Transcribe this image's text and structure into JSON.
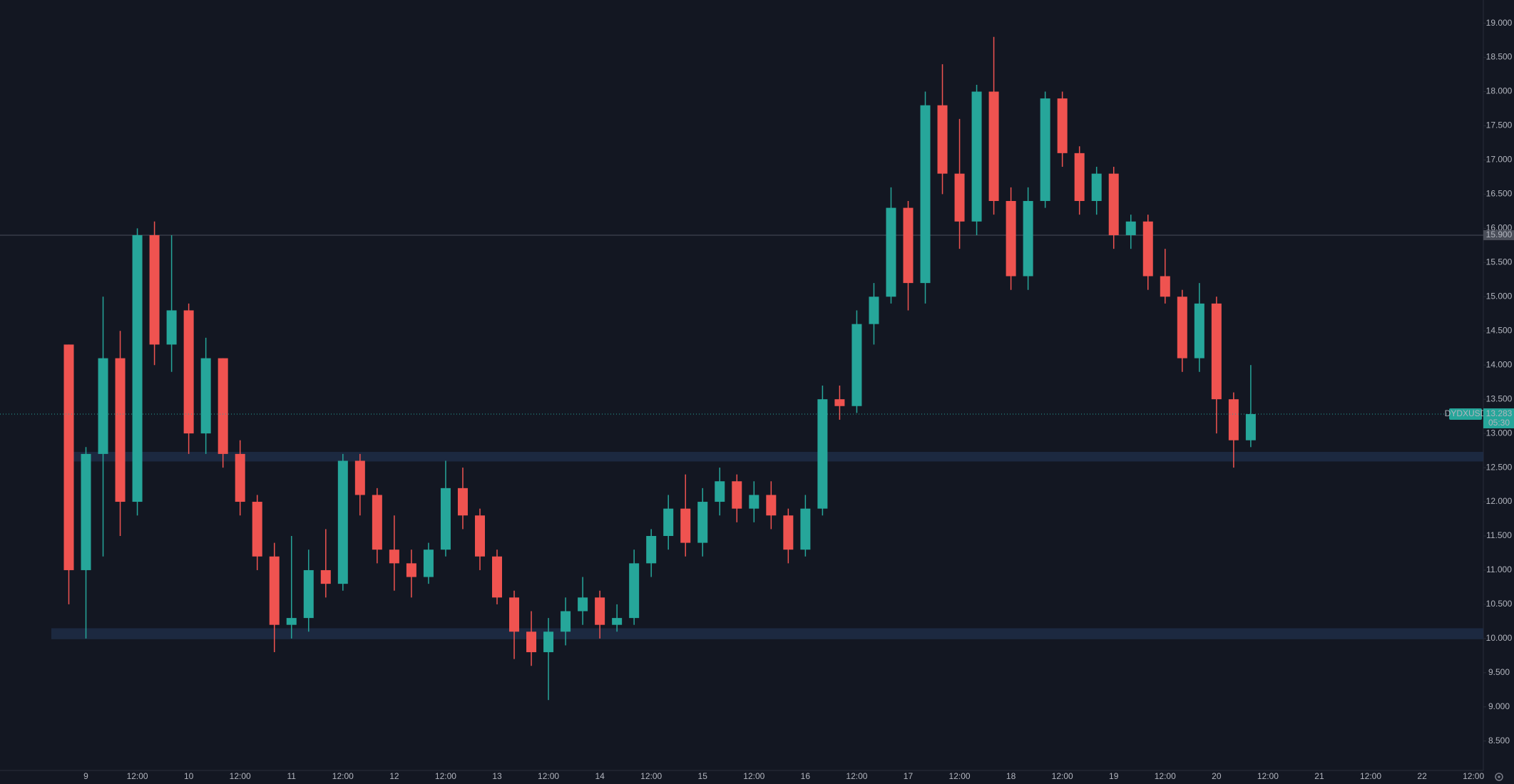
{
  "chart_data": {
    "type": "candlestick",
    "symbol": "DYDXUSD",
    "categories": [
      null,
      "9",
      null,
      null,
      "12:00",
      null,
      null,
      "10",
      null,
      null,
      "12:00",
      null,
      null,
      "11",
      null,
      null,
      "12:00",
      null,
      null,
      "12",
      null,
      null,
      "12:00",
      null,
      null,
      "13",
      null,
      null,
      "12:00",
      null,
      null,
      "14",
      null,
      null,
      "12:00",
      null,
      null,
      "15",
      null,
      null,
      "12:00",
      null,
      null,
      "16",
      null,
      null,
      "12:00",
      null,
      null,
      "17",
      null,
      null,
      "12:00",
      null,
      null,
      "18",
      null,
      null,
      "12:00",
      null,
      null,
      "19",
      null,
      null,
      "12:00",
      null,
      null,
      "20",
      null,
      null,
      "12:00",
      null,
      null,
      "21",
      null,
      null,
      "12:00",
      null,
      null,
      "22",
      null,
      null,
      "12:00"
    ],
    "open": [
      14.3,
      11.0,
      12.7,
      14.1,
      12.0,
      15.9,
      14.3,
      14.8,
      13.0,
      14.1,
      12.7,
      12.0,
      11.2,
      10.2,
      10.3,
      11.0,
      10.8,
      12.6,
      12.1,
      11.3,
      11.1,
      10.9,
      11.3,
      12.2,
      11.8,
      11.2,
      10.6,
      10.1,
      9.8,
      10.1,
      10.4,
      10.6,
      10.2,
      10.3,
      11.1,
      11.5,
      11.9,
      11.4,
      12.0,
      12.3,
      11.9,
      12.1,
      11.8,
      11.3,
      11.9,
      13.5,
      13.4,
      14.6,
      15.0,
      16.3,
      15.2,
      17.8,
      16.8,
      16.1,
      18.0,
      16.4,
      15.3,
      16.4,
      17.9,
      17.1,
      16.4,
      16.8,
      15.9,
      16.1,
      15.3,
      15.0,
      14.1,
      14.9,
      13.5,
      12.9,
      null,
      null,
      null,
      null,
      null,
      null,
      null,
      null,
      null,
      null,
      null,
      null,
      null
    ],
    "high": [
      14.3,
      12.8,
      15.0,
      14.5,
      16.0,
      16.1,
      15.9,
      14.9,
      14.4,
      14.1,
      12.9,
      12.1,
      11.4,
      11.5,
      11.3,
      11.6,
      12.7,
      12.7,
      12.2,
      11.8,
      11.3,
      11.4,
      12.6,
      12.5,
      11.9,
      11.3,
      10.7,
      10.4,
      10.3,
      10.6,
      10.9,
      10.7,
      10.5,
      11.3,
      11.6,
      12.1,
      12.4,
      12.2,
      12.5,
      12.4,
      12.3,
      12.3,
      11.9,
      12.1,
      13.7,
      13.7,
      14.8,
      15.2,
      16.6,
      16.4,
      18.0,
      18.4,
      17.6,
      18.1,
      18.8,
      16.6,
      16.6,
      18.0,
      18.0,
      17.2,
      16.9,
      16.9,
      16.2,
      16.2,
      15.7,
      15.1,
      15.2,
      15.0,
      13.6,
      14.0,
      null,
      null,
      null,
      null,
      null,
      null,
      null,
      null,
      null,
      null,
      null,
      null,
      null
    ],
    "low": [
      10.5,
      10.0,
      11.2,
      11.5,
      11.8,
      14.0,
      13.9,
      12.7,
      12.7,
      12.5,
      11.8,
      11.0,
      9.8,
      10.0,
      10.1,
      10.6,
      10.7,
      11.8,
      11.1,
      10.7,
      10.6,
      10.8,
      11.2,
      11.6,
      11.0,
      10.5,
      9.7,
      9.6,
      9.1,
      9.9,
      10.2,
      10.0,
      10.1,
      10.2,
      10.9,
      11.3,
      11.2,
      11.2,
      11.8,
      11.7,
      11.7,
      11.6,
      11.1,
      11.2,
      11.8,
      13.2,
      13.3,
      14.3,
      14.9,
      14.8,
      14.9,
      16.5,
      15.7,
      15.9,
      16.2,
      15.1,
      15.1,
      16.3,
      16.9,
      16.2,
      16.2,
      15.7,
      15.7,
      15.1,
      14.9,
      13.9,
      13.9,
      13.0,
      12.5,
      12.8,
      null,
      null,
      null,
      null,
      null,
      null,
      null,
      null,
      null,
      null,
      null,
      null,
      null
    ],
    "close": [
      11.0,
      12.7,
      14.1,
      12.0,
      15.9,
      14.3,
      14.8,
      13.0,
      14.1,
      12.7,
      12.0,
      11.2,
      10.2,
      10.3,
      11.0,
      10.8,
      12.6,
      12.1,
      11.3,
      11.1,
      10.9,
      11.3,
      12.2,
      11.8,
      11.2,
      10.6,
      10.1,
      9.8,
      10.1,
      10.4,
      10.6,
      10.2,
      10.3,
      11.1,
      11.5,
      11.9,
      11.4,
      12.0,
      12.3,
      11.9,
      12.1,
      11.8,
      11.3,
      11.9,
      13.5,
      13.4,
      14.6,
      15.0,
      16.3,
      15.2,
      17.8,
      16.8,
      16.1,
      18.0,
      16.4,
      15.3,
      16.4,
      17.9,
      17.1,
      16.4,
      16.8,
      15.9,
      16.1,
      15.3,
      15.0,
      14.1,
      14.9,
      13.5,
      12.9,
      13.283,
      null,
      null,
      null,
      null,
      null,
      null,
      null,
      null,
      null,
      null,
      null,
      null,
      null
    ],
    "up_color": "#26a69a",
    "down_color": "#ef5350",
    "ylim": [
      8.07,
      19.34
    ],
    "yticks": [
      {
        "value": 19,
        "label": "19.000"
      },
      {
        "value": 18.5,
        "label": "18.500"
      },
      {
        "value": 18,
        "label": "18.000"
      },
      {
        "value": 17.5,
        "label": "17.500"
      },
      {
        "value": 17,
        "label": "17.000"
      },
      {
        "value": 16.5,
        "label": "16.500"
      },
      {
        "value": 16,
        "label": "16.000"
      },
      {
        "value": 15.5,
        "label": "15.500"
      },
      {
        "value": 15,
        "label": "15.000"
      },
      {
        "value": 14.5,
        "label": "14.500"
      },
      {
        "value": 14,
        "label": "14.000"
      },
      {
        "value": 13.5,
        "label": "13.500"
      },
      {
        "value": 13,
        "label": "13.000"
      },
      {
        "value": 12.5,
        "label": "12.500"
      },
      {
        "value": 12,
        "label": "12.000"
      },
      {
        "value": 11.5,
        "label": "11.500"
      },
      {
        "value": 11,
        "label": "11.000"
      },
      {
        "value": 10.5,
        "label": "10.500"
      },
      {
        "value": 10,
        "label": "10.000"
      },
      {
        "value": 9.5,
        "label": "9.500"
      },
      {
        "value": 9,
        "label": "9.000"
      },
      {
        "value": 8.5,
        "label": "8.500"
      }
    ],
    "grid": false,
    "zones": [
      {
        "from": 12.59,
        "to": 12.73
      },
      {
        "from": 9.99,
        "to": 10.15
      }
    ],
    "price_line": {
      "value": 15.9,
      "label": "15.900"
    },
    "last_price": {
      "value": 13.283,
      "label": "13.283",
      "countdown": "05:30"
    }
  }
}
